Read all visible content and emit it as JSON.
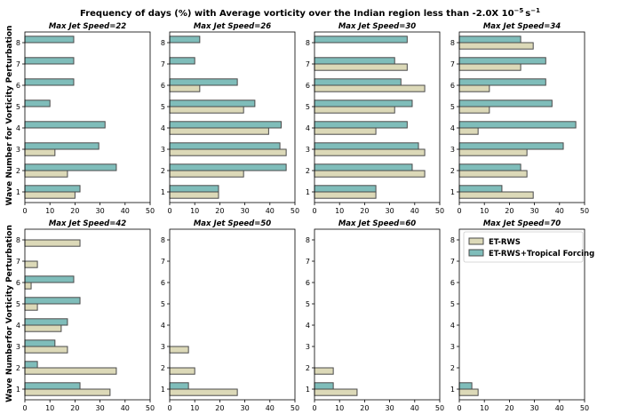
{
  "figure": {
    "title_prefix": "Frequency of days (%) with Average vorticity over the Indian region less than -2.0X 10",
    "title_exponent": "−5",
    "title_unit": "s",
    "title_unit_exponent": "−1",
    "ylabel_top": "Wave Number for Vorticity Perturbation",
    "ylabel_bottom": "Wave Numberfor Vorticity Perturbation"
  },
  "colors": {
    "et_rws": "#dcd9b8",
    "et_rws_tropical": "#7fbdba",
    "edge": "#4a4a4a"
  },
  "chart_data": [
    {
      "type": "bar",
      "orientation": "horizontal",
      "title": "Max Jet Speed=22",
      "categories": [
        "1",
        "2",
        "3",
        "4",
        "5",
        "6",
        "7",
        "8"
      ],
      "xlim": [
        0,
        50
      ],
      "xticks": [
        "0",
        "10",
        "20",
        "30",
        "40",
        "50"
      ],
      "series": [
        {
          "name": "ET-RWS",
          "values": [
            20,
            17,
            12,
            0,
            0,
            0,
            0,
            0
          ]
        },
        {
          "name": "ET-RWS+Tropical Forcing",
          "values": [
            22,
            36.5,
            29.5,
            32,
            10,
            19.5,
            19.5,
            19.5
          ]
        }
      ]
    },
    {
      "type": "bar",
      "orientation": "horizontal",
      "title": "Max Jet Speed=26",
      "categories": [
        "1",
        "2",
        "3",
        "4",
        "5",
        "6",
        "7",
        "8"
      ],
      "xlim": [
        0,
        50
      ],
      "xticks": [
        "0",
        "10",
        "20",
        "30",
        "40",
        "50"
      ],
      "series": [
        {
          "name": "ET-RWS",
          "values": [
            19.5,
            29.5,
            46.5,
            39.5,
            29.5,
            12,
            0,
            0
          ]
        },
        {
          "name": "ET-RWS+Tropical Forcing",
          "values": [
            19.5,
            46.5,
            44,
            44.5,
            34,
            27,
            10,
            12
          ]
        }
      ]
    },
    {
      "type": "bar",
      "orientation": "horizontal",
      "title": "Max Jet Speed=30",
      "categories": [
        "1",
        "2",
        "3",
        "4",
        "5",
        "6",
        "7",
        "8"
      ],
      "xlim": [
        0,
        50
      ],
      "xticks": [
        "0",
        "10",
        "20",
        "30",
        "40",
        "50"
      ],
      "series": [
        {
          "name": "ET-RWS",
          "values": [
            24.5,
            44,
            44,
            24.5,
            32,
            44,
            37,
            0
          ]
        },
        {
          "name": "ET-RWS+Tropical Forcing",
          "values": [
            24.5,
            39,
            41.5,
            37,
            39,
            34.5,
            32,
            37
          ]
        }
      ]
    },
    {
      "type": "bar",
      "orientation": "horizontal",
      "title": "Max Jet Speed=34",
      "categories": [
        "1",
        "2",
        "3",
        "4",
        "5",
        "6",
        "7",
        "8"
      ],
      "xlim": [
        0,
        50
      ],
      "xticks": [
        "0",
        "10",
        "20",
        "30",
        "40",
        "50"
      ],
      "series": [
        {
          "name": "ET-RWS",
          "values": [
            29.5,
            27,
            27,
            7.5,
            12,
            12,
            24.5,
            29.5
          ]
        },
        {
          "name": "ET-RWS+Tropical Forcing",
          "values": [
            17,
            24.5,
            41.5,
            46.5,
            37,
            34.5,
            34.5,
            24.5
          ]
        }
      ]
    },
    {
      "type": "bar",
      "orientation": "horizontal",
      "title": "Max Jet Speed=42",
      "categories": [
        "1",
        "2",
        "3",
        "4",
        "5",
        "6",
        "7",
        "8"
      ],
      "xlim": [
        0,
        50
      ],
      "xticks": [
        "0",
        "10",
        "20",
        "30",
        "40",
        "50"
      ],
      "series": [
        {
          "name": "ET-RWS",
          "values": [
            34,
            36.5,
            17,
            14.5,
            5,
            2.5,
            5,
            22
          ]
        },
        {
          "name": "ET-RWS+Tropical Forcing",
          "values": [
            22,
            5,
            12,
            17,
            22,
            19.5,
            0,
            0
          ]
        }
      ]
    },
    {
      "type": "bar",
      "orientation": "horizontal",
      "title": "Max Jet Speed=50",
      "categories": [
        "1",
        "2",
        "3",
        "4",
        "5",
        "6",
        "7",
        "8"
      ],
      "xlim": [
        0,
        50
      ],
      "xticks": [
        "0",
        "10",
        "20",
        "30",
        "40",
        "50"
      ],
      "series": [
        {
          "name": "ET-RWS",
          "values": [
            27,
            10,
            7.5,
            0,
            0,
            0,
            0,
            0
          ]
        },
        {
          "name": "ET-RWS+Tropical Forcing",
          "values": [
            7.5,
            0,
            0,
            0,
            0,
            0,
            0,
            0
          ]
        }
      ]
    },
    {
      "type": "bar",
      "orientation": "horizontal",
      "title": "Max Jet Speed=60",
      "categories": [
        "1",
        "2",
        "3",
        "4",
        "5",
        "6",
        "7",
        "8"
      ],
      "xlim": [
        0,
        50
      ],
      "xticks": [
        "0",
        "10",
        "20",
        "30",
        "40",
        "50"
      ],
      "series": [
        {
          "name": "ET-RWS",
          "values": [
            17,
            7.5,
            0,
            0,
            0,
            0,
            0,
            0
          ]
        },
        {
          "name": "ET-RWS+Tropical Forcing",
          "values": [
            7.5,
            0,
            0,
            0,
            0,
            0,
            0,
            0
          ]
        }
      ]
    },
    {
      "type": "bar",
      "orientation": "horizontal",
      "title": "Max Jet Speed=70",
      "categories": [
        "1",
        "2",
        "3",
        "4",
        "5",
        "6",
        "7",
        "8"
      ],
      "xlim": [
        0,
        50
      ],
      "xticks": [
        "0",
        "10",
        "20",
        "30",
        "40",
        "50"
      ],
      "series": [
        {
          "name": "ET-RWS",
          "values": [
            7.5,
            0,
            0,
            0,
            0,
            0,
            0,
            0
          ]
        },
        {
          "name": "ET-RWS+Tropical Forcing",
          "values": [
            5,
            0,
            0,
            0,
            0,
            0,
            0,
            0
          ]
        }
      ],
      "legend": {
        "position": "upper-right",
        "entries": [
          "ET-RWS",
          "ET-RWS+Tropical Forcing"
        ]
      }
    }
  ]
}
